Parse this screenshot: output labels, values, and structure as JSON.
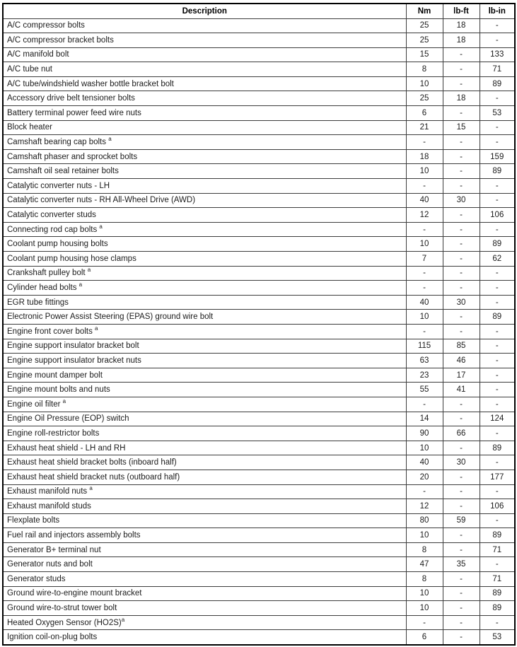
{
  "page": {
    "background_color": "#ffffff",
    "border_color": "#000000",
    "grid_color": "#3c3c3c"
  },
  "table": {
    "header": {
      "description": "Description",
      "nm": "Nm",
      "lb_ft": "lb-ft",
      "lb_in": "lb-in"
    },
    "footnote_marker": "a",
    "rows": [
      {
        "description": "A/C compressor bolts",
        "sup": "",
        "sup_space": false,
        "nm": "25",
        "lb_ft": "18",
        "lb_in": "-"
      },
      {
        "description": "A/C compressor bracket bolts",
        "sup": "",
        "sup_space": false,
        "nm": "25",
        "lb_ft": "18",
        "lb_in": "-"
      },
      {
        "description": "A/C manifold bolt",
        "sup": "",
        "sup_space": false,
        "nm": "15",
        "lb_ft": "-",
        "lb_in": "133"
      },
      {
        "description": "A/C tube nut",
        "sup": "",
        "sup_space": false,
        "nm": "8",
        "lb_ft": "-",
        "lb_in": "71"
      },
      {
        "description": "A/C tube/windshield washer bottle bracket bolt",
        "sup": "",
        "sup_space": false,
        "nm": "10",
        "lb_ft": "-",
        "lb_in": "89"
      },
      {
        "description": "Accessory drive belt tensioner bolts",
        "sup": "",
        "sup_space": false,
        "nm": "25",
        "lb_ft": "18",
        "lb_in": "-"
      },
      {
        "description": "Battery terminal power feed wire nuts",
        "sup": "",
        "sup_space": false,
        "nm": "6",
        "lb_ft": "-",
        "lb_in": "53"
      },
      {
        "description": "Block heater",
        "sup": "",
        "sup_space": false,
        "nm": "21",
        "lb_ft": "15",
        "lb_in": "-"
      },
      {
        "description": "Camshaft bearing cap bolts",
        "sup": "a",
        "sup_space": true,
        "nm": "-",
        "lb_ft": "-",
        "lb_in": "-"
      },
      {
        "description": "Camshaft phaser and sprocket bolts",
        "sup": "",
        "sup_space": false,
        "nm": "18",
        "lb_ft": "-",
        "lb_in": "159"
      },
      {
        "description": "Camshaft oil seal retainer bolts",
        "sup": "",
        "sup_space": false,
        "nm": "10",
        "lb_ft": "-",
        "lb_in": "89"
      },
      {
        "description": "Catalytic converter nuts - LH",
        "sup": "",
        "sup_space": false,
        "nm": "-",
        "lb_ft": "-",
        "lb_in": "-"
      },
      {
        "description": "Catalytic converter nuts - RH All-Wheel Drive (AWD)",
        "sup": "",
        "sup_space": false,
        "nm": "40",
        "lb_ft": "30",
        "lb_in": "-"
      },
      {
        "description": "Catalytic converter studs",
        "sup": "",
        "sup_space": false,
        "nm": "12",
        "lb_ft": "-",
        "lb_in": "106"
      },
      {
        "description": "Connecting rod cap bolts",
        "sup": "a",
        "sup_space": true,
        "nm": "-",
        "lb_ft": "-",
        "lb_in": "-"
      },
      {
        "description": "Coolant pump housing bolts",
        "sup": "",
        "sup_space": false,
        "nm": "10",
        "lb_ft": "-",
        "lb_in": "89"
      },
      {
        "description": "Coolant pump housing hose clamps",
        "sup": "",
        "sup_space": false,
        "nm": "7",
        "lb_ft": "-",
        "lb_in": "62"
      },
      {
        "description": "Crankshaft pulley bolt",
        "sup": "a",
        "sup_space": true,
        "nm": "-",
        "lb_ft": "-",
        "lb_in": "-"
      },
      {
        "description": "Cylinder head bolts",
        "sup": "a",
        "sup_space": true,
        "nm": "-",
        "lb_ft": "-",
        "lb_in": "-"
      },
      {
        "description": "EGR tube fittings",
        "sup": "",
        "sup_space": false,
        "nm": "40",
        "lb_ft": "30",
        "lb_in": "-"
      },
      {
        "description": "Electronic Power Assist Steering (EPAS) ground wire bolt",
        "sup": "",
        "sup_space": false,
        "nm": "10",
        "lb_ft": "-",
        "lb_in": "89"
      },
      {
        "description": "Engine front cover bolts",
        "sup": "a",
        "sup_space": true,
        "nm": "-",
        "lb_ft": "-",
        "lb_in": "-"
      },
      {
        "description": "Engine support insulator bracket bolt",
        "sup": "",
        "sup_space": false,
        "nm": "115",
        "lb_ft": "85",
        "lb_in": "-"
      },
      {
        "description": "Engine support insulator bracket nuts",
        "sup": "",
        "sup_space": false,
        "nm": "63",
        "lb_ft": "46",
        "lb_in": "-"
      },
      {
        "description": "Engine mount damper bolt",
        "sup": "",
        "sup_space": false,
        "nm": "23",
        "lb_ft": "17",
        "lb_in": "-"
      },
      {
        "description": "Engine mount bolts and nuts",
        "sup": "",
        "sup_space": false,
        "nm": "55",
        "lb_ft": "41",
        "lb_in": "-"
      },
      {
        "description": "Engine oil filter",
        "sup": "a",
        "sup_space": true,
        "nm": "-",
        "lb_ft": "-",
        "lb_in": "-"
      },
      {
        "description": "Engine Oil Pressure (EOP) switch",
        "sup": "",
        "sup_space": false,
        "nm": "14",
        "lb_ft": "-",
        "lb_in": "124"
      },
      {
        "description": "Engine roll-restrictor bolts",
        "sup": "",
        "sup_space": false,
        "nm": "90",
        "lb_ft": "66",
        "lb_in": "-"
      },
      {
        "description": "Exhaust heat shield - LH and RH",
        "sup": "",
        "sup_space": false,
        "nm": "10",
        "lb_ft": "-",
        "lb_in": "89"
      },
      {
        "description": "Exhaust heat shield bracket bolts (inboard half)",
        "sup": "",
        "sup_space": false,
        "nm": "40",
        "lb_ft": "30",
        "lb_in": "-"
      },
      {
        "description": "Exhaust heat shield bracket nuts (outboard half)",
        "sup": "",
        "sup_space": false,
        "nm": "20",
        "lb_ft": "-",
        "lb_in": "177"
      },
      {
        "description": "Exhaust manifold nuts",
        "sup": "a",
        "sup_space": true,
        "nm": "-",
        "lb_ft": "-",
        "lb_in": "-"
      },
      {
        "description": "Exhaust manifold studs",
        "sup": "",
        "sup_space": false,
        "nm": "12",
        "lb_ft": "-",
        "lb_in": "106"
      },
      {
        "description": "Flexplate bolts",
        "sup": "",
        "sup_space": false,
        "nm": "80",
        "lb_ft": "59",
        "lb_in": "-"
      },
      {
        "description": "Fuel rail and injectors assembly bolts",
        "sup": "",
        "sup_space": false,
        "nm": "10",
        "lb_ft": "-",
        "lb_in": "89"
      },
      {
        "description": "Generator B+ terminal nut",
        "sup": "",
        "sup_space": false,
        "nm": "8",
        "lb_ft": "-",
        "lb_in": "71"
      },
      {
        "description": "Generator nuts and bolt",
        "sup": "",
        "sup_space": false,
        "nm": "47",
        "lb_ft": "35",
        "lb_in": "-"
      },
      {
        "description": "Generator studs",
        "sup": "",
        "sup_space": false,
        "nm": "8",
        "lb_ft": "-",
        "lb_in": "71"
      },
      {
        "description": "Ground wire-to-engine mount bracket",
        "sup": "",
        "sup_space": false,
        "nm": "10",
        "lb_ft": "-",
        "lb_in": "89"
      },
      {
        "description": "Ground wire-to-strut tower bolt",
        "sup": "",
        "sup_space": false,
        "nm": "10",
        "lb_ft": "-",
        "lb_in": "89"
      },
      {
        "description": "Heated Oxygen Sensor (HO2S)",
        "sup": "a",
        "sup_space": false,
        "nm": "-",
        "lb_ft": "-",
        "lb_in": "-"
      },
      {
        "description": "Ignition coil-on-plug bolts",
        "sup": "",
        "sup_space": false,
        "nm": "6",
        "lb_ft": "-",
        "lb_in": "53"
      }
    ]
  }
}
